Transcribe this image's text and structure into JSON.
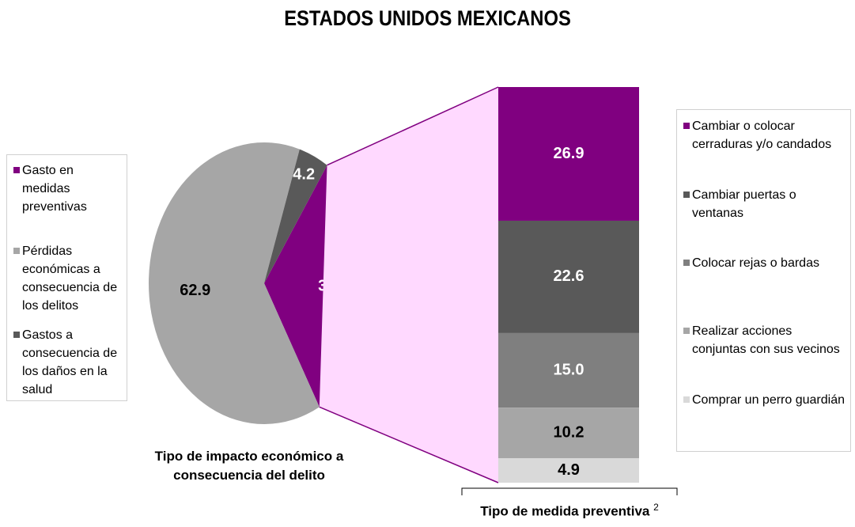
{
  "title": "ESTADOS UNIDOS MEXICANOS",
  "chart_data": [
    {
      "type": "pie",
      "caption": "Tipo de impacto económico a consecuencia del delito",
      "slices": [
        {
          "label": "Gasto en medidas preventivas",
          "value": 32.9,
          "color": "#800080",
          "label_color": "#ffffff"
        },
        {
          "label": "Pérdidas económicas a consecuencia de los delitos",
          "value": 62.9,
          "color": "#a6a6a6",
          "label_color": "#000000"
        },
        {
          "label": "Gastos a consecuencia de los daños en la salud",
          "value": 4.2,
          "color": "#595959",
          "label_color": "#ffffff"
        }
      ],
      "exploded_slice": "Gasto en medidas preventivas",
      "legend_placement": "left"
    },
    {
      "type": "bar",
      "stacked": true,
      "caption": "Tipo de medida preventiva",
      "caption_note": "2",
      "segments": [
        {
          "label": "Cambiar o colocar cerraduras y/o candados",
          "value": 26.9,
          "color": "#800080",
          "label_color": "#ffffff"
        },
        {
          "label": "Cambiar puertas o ventanas",
          "value": 22.6,
          "color": "#595959",
          "label_color": "#ffffff"
        },
        {
          "label": "Colocar rejas o bardas",
          "value": 15.0,
          "color": "#7f7f7f",
          "label_color": "#ffffff"
        },
        {
          "label": "Realizar acciones conjuntas con sus vecinos",
          "value": 10.2,
          "color": "#a6a6a6",
          "label_color": "#000000"
        },
        {
          "label": "Comprar un perro guardián",
          "value": 4.9,
          "color": "#d9d9d9",
          "label_color": "#000000"
        }
      ],
      "connector_color": "#ffd9ff",
      "legend_placement": "right"
    }
  ]
}
